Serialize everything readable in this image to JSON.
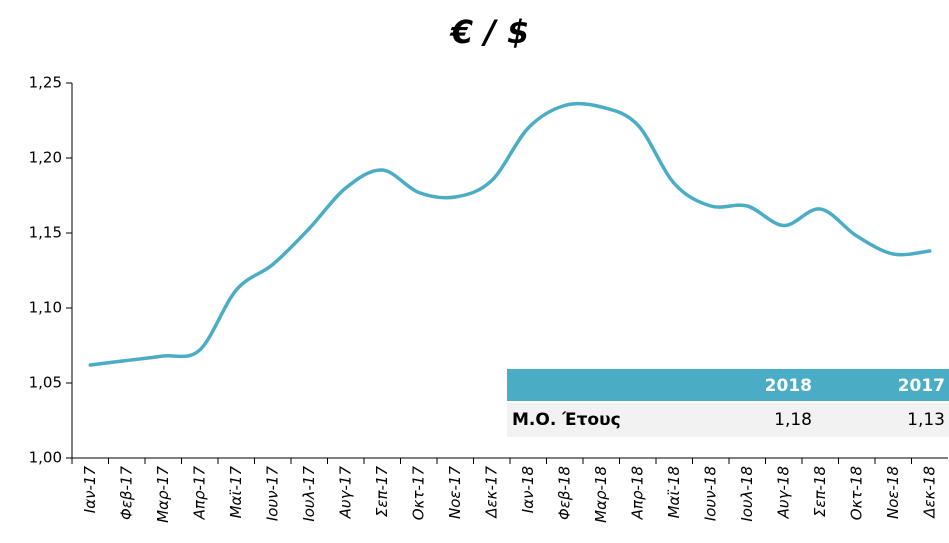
{
  "chart_data": {
    "type": "line",
    "title": "€ / $",
    "categories": [
      "Ιαν-17",
      "Φεβ-17",
      "Μαρ-17",
      "Απρ-17",
      "Μαϊ-17",
      "Ιουν-17",
      "Ιουλ-17",
      "Αυγ-17",
      "Σεπ-17",
      "Οκτ-17",
      "Νοε-17",
      "Δεκ-17",
      "Ιαν-18",
      "Φεβ-18",
      "Μαρ-18",
      "Απρ-18",
      "Μαϊ-18",
      "Ιουν-18",
      "Ιουλ-18",
      "Αυγ-18",
      "Σεπ-18",
      "Οκτ-18",
      "Νοε-18",
      "Δεκ-18"
    ],
    "series": [
      {
        "name": "€ / $",
        "color": "#4bacc6",
        "values": [
          1.062,
          1.065,
          1.068,
          1.072,
          1.112,
          1.129,
          1.153,
          1.18,
          1.192,
          1.177,
          1.174,
          1.185,
          1.22,
          1.235,
          1.234,
          1.222,
          1.183,
          1.168,
          1.168,
          1.155,
          1.166,
          1.148,
          1.136,
          1.138
        ]
      }
    ],
    "ylim": [
      1.0,
      1.25
    ],
    "yticks": [
      {
        "value": 1.0,
        "label": "1,00"
      },
      {
        "value": 1.05,
        "label": "1,05"
      },
      {
        "value": 1.1,
        "label": "1,10"
      },
      {
        "value": 1.15,
        "label": "1,15"
      },
      {
        "value": 1.2,
        "label": "1,20"
      },
      {
        "value": 1.25,
        "label": "1,25"
      }
    ],
    "grid": false
  },
  "table": {
    "columns": [
      "2018",
      "2017"
    ],
    "rows": [
      {
        "label": "Μ.Ο. Έτους",
        "cells": [
          "1,18",
          "1,13"
        ]
      }
    ]
  }
}
